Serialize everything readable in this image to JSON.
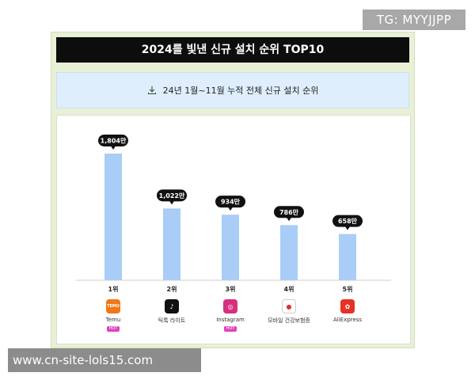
{
  "watermark_top": "TG: MYYJJPP",
  "watermark_bottom": "www.cn-site-lols15.com",
  "title": "2024를 빛낸 신규 설치 순위 TOP10",
  "subtitle": "24년 1월~11월 누적 전체 신규 설치 순위",
  "colors": {
    "bar": "#a9cdf7",
    "frame_bg": "#e8f1d6",
    "title_bg": "#0d0d0d",
    "label_bg": "#111111",
    "hot": "#e040c0"
  },
  "chart_data": {
    "type": "bar",
    "title": "2024를 빛낸 신규 설치 순위 TOP10",
    "subtitle": "24년 1월~11월 누적 전체 신규 설치 순위",
    "xlabel": "",
    "ylabel": "",
    "grid": false,
    "categories": [
      "1위",
      "2위",
      "3위",
      "4위",
      "5위"
    ],
    "values": [
      1804,
      1022,
      934,
      786,
      658
    ],
    "value_labels": [
      "1,804만",
      "1,022만",
      "934만",
      "786만",
      "658만"
    ],
    "ylim": [
      0,
      1804
    ]
  },
  "apps": [
    {
      "name": "Temu",
      "icon": "temu-icon",
      "icon_color": "#f07818",
      "icon_text": "TEMU",
      "hot": "HOT"
    },
    {
      "name": "틱톡 라이트",
      "icon": "tiktok-icon",
      "icon_color": "#111111",
      "icon_text": "♪",
      "hot": ""
    },
    {
      "name": "Instagram",
      "icon": "instagram-icon",
      "icon_color": "#d6307e",
      "icon_text": "◎",
      "hot": "HOT"
    },
    {
      "name": "모바일 건강보험증",
      "icon": "health-insurance-icon",
      "icon_color": "#ffffff",
      "icon_text": "●",
      "hot": ""
    },
    {
      "name": "AliExpress",
      "icon": "aliexpress-icon",
      "icon_color": "#e43225",
      "icon_text": "✿",
      "hot": ""
    }
  ]
}
